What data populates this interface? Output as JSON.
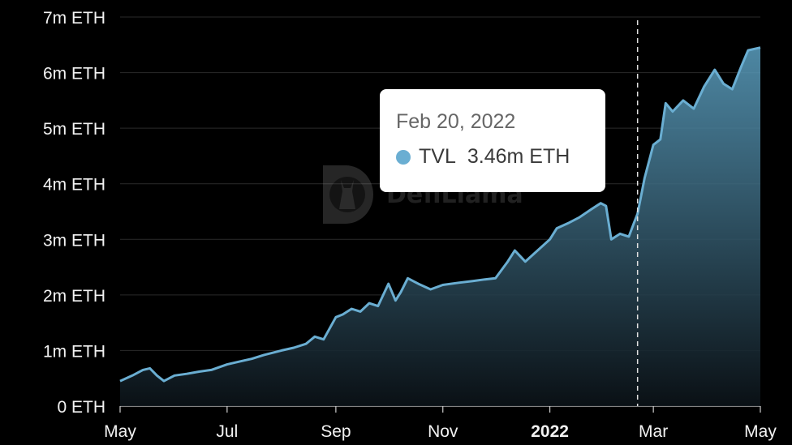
{
  "watermark": {
    "text": "DefiLlama"
  },
  "tooltip": {
    "date": "Feb 20, 2022",
    "series_label": "TVL",
    "value_label": "3.46m ETH",
    "dot_color": "#6aaed2"
  },
  "colors": {
    "line": "#6aaed2",
    "background": "#000000"
  },
  "chart_data": {
    "type": "area",
    "y_tick_labels": [
      "0 ETH",
      "1m ETH",
      "2m ETH",
      "3m ETH",
      "4m ETH",
      "5m ETH",
      "6m ETH",
      "7m ETH"
    ],
    "y_ticks": [
      0,
      1,
      2,
      3,
      4,
      5,
      6,
      7
    ],
    "ylim": [
      0,
      7
    ],
    "y_unit": "million ETH",
    "x_tick_labels": [
      {
        "label": "May",
        "date": "2021-05-01",
        "bold": false
      },
      {
        "label": "Jul",
        "date": "2021-07-01",
        "bold": false
      },
      {
        "label": "Sep",
        "date": "2021-09-01",
        "bold": false
      },
      {
        "label": "Nov",
        "date": "2021-11-01",
        "bold": false
      },
      {
        "label": "2022",
        "date": "2022-01-01",
        "bold": true
      },
      {
        "label": "Mar",
        "date": "2022-03-01",
        "bold": false
      },
      {
        "label": "May",
        "date": "2022-05-01",
        "bold": false
      }
    ],
    "xlim": [
      "2021-05-01",
      "2022-05-01"
    ],
    "hover_date": "2022-02-20",
    "grid": true,
    "series": [
      {
        "name": "TVL",
        "points": [
          [
            "2021-05-01",
            0.45
          ],
          [
            "2021-05-08",
            0.55
          ],
          [
            "2021-05-14",
            0.65
          ],
          [
            "2021-05-18",
            0.68
          ],
          [
            "2021-05-22",
            0.55
          ],
          [
            "2021-05-26",
            0.45
          ],
          [
            "2021-06-01",
            0.55
          ],
          [
            "2021-06-08",
            0.58
          ],
          [
            "2021-06-15",
            0.62
          ],
          [
            "2021-06-22",
            0.65
          ],
          [
            "2021-07-01",
            0.75
          ],
          [
            "2021-07-08",
            0.8
          ],
          [
            "2021-07-15",
            0.85
          ],
          [
            "2021-07-22",
            0.92
          ],
          [
            "2021-08-01",
            1.0
          ],
          [
            "2021-08-08",
            1.05
          ],
          [
            "2021-08-15",
            1.12
          ],
          [
            "2021-08-20",
            1.25
          ],
          [
            "2021-08-25",
            1.2
          ],
          [
            "2021-09-01",
            1.6
          ],
          [
            "2021-09-05",
            1.65
          ],
          [
            "2021-09-10",
            1.75
          ],
          [
            "2021-09-15",
            1.7
          ],
          [
            "2021-09-20",
            1.85
          ],
          [
            "2021-09-25",
            1.8
          ],
          [
            "2021-10-01",
            2.2
          ],
          [
            "2021-10-05",
            1.9
          ],
          [
            "2021-10-08",
            2.05
          ],
          [
            "2021-10-12",
            2.3
          ],
          [
            "2021-10-18",
            2.2
          ],
          [
            "2021-10-25",
            2.1
          ],
          [
            "2021-11-01",
            2.18
          ],
          [
            "2021-11-10",
            2.22
          ],
          [
            "2021-11-18",
            2.25
          ],
          [
            "2021-11-25",
            2.28
          ],
          [
            "2021-12-01",
            2.3
          ],
          [
            "2021-12-08",
            2.6
          ],
          [
            "2021-12-12",
            2.8
          ],
          [
            "2021-12-18",
            2.6
          ],
          [
            "2021-12-25",
            2.8
          ],
          [
            "2022-01-01",
            3.0
          ],
          [
            "2022-01-05",
            3.2
          ],
          [
            "2022-01-12",
            3.3
          ],
          [
            "2022-01-18",
            3.4
          ],
          [
            "2022-01-25",
            3.55
          ],
          [
            "2022-01-30",
            3.65
          ],
          [
            "2022-02-02",
            3.6
          ],
          [
            "2022-02-05",
            3.0
          ],
          [
            "2022-02-10",
            3.1
          ],
          [
            "2022-02-15",
            3.05
          ],
          [
            "2022-02-18",
            3.3
          ],
          [
            "2022-02-20",
            3.46
          ],
          [
            "2022-02-24",
            4.1
          ],
          [
            "2022-03-01",
            4.7
          ],
          [
            "2022-03-05",
            4.8
          ],
          [
            "2022-03-08",
            5.45
          ],
          [
            "2022-03-12",
            5.3
          ],
          [
            "2022-03-18",
            5.5
          ],
          [
            "2022-03-24",
            5.35
          ],
          [
            "2022-03-30",
            5.75
          ],
          [
            "2022-04-05",
            6.05
          ],
          [
            "2022-04-10",
            5.8
          ],
          [
            "2022-04-15",
            5.7
          ],
          [
            "2022-04-20",
            6.1
          ],
          [
            "2022-04-24",
            6.4
          ],
          [
            "2022-05-01",
            6.45
          ]
        ]
      }
    ]
  }
}
